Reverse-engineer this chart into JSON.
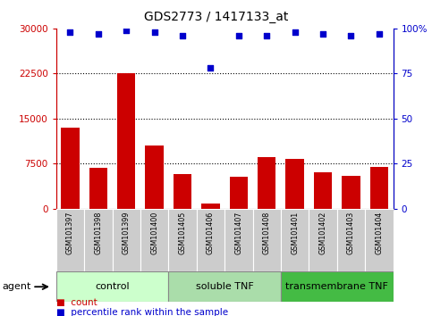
{
  "title": "GDS2773 / 1417133_at",
  "samples": [
    "GSM101397",
    "GSM101398",
    "GSM101399",
    "GSM101400",
    "GSM101405",
    "GSM101406",
    "GSM101407",
    "GSM101408",
    "GSM101401",
    "GSM101402",
    "GSM101403",
    "GSM101404"
  ],
  "counts": [
    13500,
    6800,
    22500,
    10500,
    5800,
    900,
    5300,
    8500,
    8200,
    6000,
    5500,
    7000
  ],
  "percentiles": [
    98,
    97,
    99,
    98,
    96,
    78,
    96,
    96,
    98,
    97,
    96,
    97
  ],
  "bar_color": "#cc0000",
  "dot_color": "#0000cc",
  "ylim_left": [
    0,
    30000
  ],
  "ylim_right": [
    0,
    100
  ],
  "yticks_left": [
    0,
    7500,
    15000,
    22500,
    30000
  ],
  "yticks_right": [
    0,
    25,
    50,
    75,
    100
  ],
  "ytick_labels_left": [
    "0",
    "7500",
    "15000",
    "22500",
    "30000"
  ],
  "ytick_labels_right": [
    "0",
    "25",
    "50",
    "75",
    "100%"
  ],
  "hlines": [
    7500,
    15000,
    22500
  ],
  "groups": [
    {
      "label": "control",
      "start": 0,
      "end": 4,
      "color": "#ccffcc"
    },
    {
      "label": "soluble TNF",
      "start": 4,
      "end": 8,
      "color": "#aaddaa"
    },
    {
      "label": "transmembrane TNF",
      "start": 8,
      "end": 12,
      "color": "#44bb44"
    }
  ],
  "legend_count_label": "count",
  "legend_pct_label": "percentile rank within the sample",
  "tick_area_color": "#cccccc",
  "background_color": "#ffffff",
  "agent_label": "agent"
}
